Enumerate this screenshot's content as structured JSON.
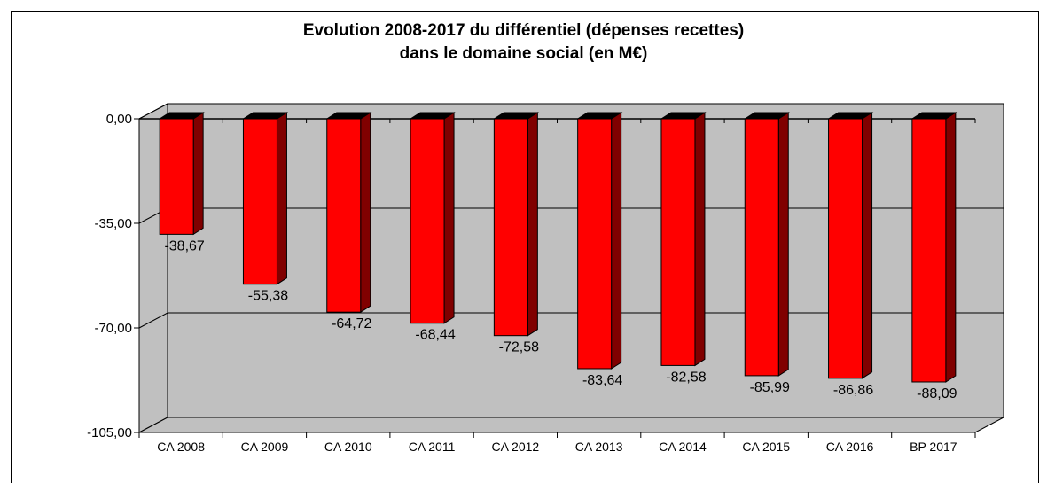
{
  "chart_data": {
    "type": "bar",
    "title_line1": "Evolution 2008-2017 du différentiel (dépenses recettes)",
    "title_line2": "dans le domaine social (en M€)",
    "categories": [
      "CA 2008",
      "CA 2009",
      "CA 2010",
      "CA 2011",
      "CA 2012",
      "CA 2013",
      "CA 2014",
      "CA 2015",
      "CA 2016",
      "BP 2017"
    ],
    "values": [
      -38.67,
      -55.38,
      -64.72,
      -68.44,
      -72.58,
      -83.64,
      -82.58,
      -85.99,
      -86.86,
      -88.09
    ],
    "value_labels": [
      "-38,67",
      "-55,38",
      "-64,72",
      "-68,44",
      "-72,58",
      "-83,64",
      "-82,58",
      "-85,99",
      "-86,86",
      "-88,09"
    ],
    "y_ticks": [
      0,
      -35,
      -70,
      -105
    ],
    "y_tick_labels": [
      "0,00",
      "-35,00",
      "-70,00",
      "-105,00"
    ],
    "ylim": [
      -105,
      0
    ],
    "xlabel": "",
    "ylabel": "",
    "grid": true,
    "legend": "none",
    "colors": {
      "bar_front": "#ff0000",
      "bar_side": "#800000",
      "bar_top": "#000000",
      "wall": "#c0c0c0",
      "floor": "#c0c0c0"
    }
  }
}
